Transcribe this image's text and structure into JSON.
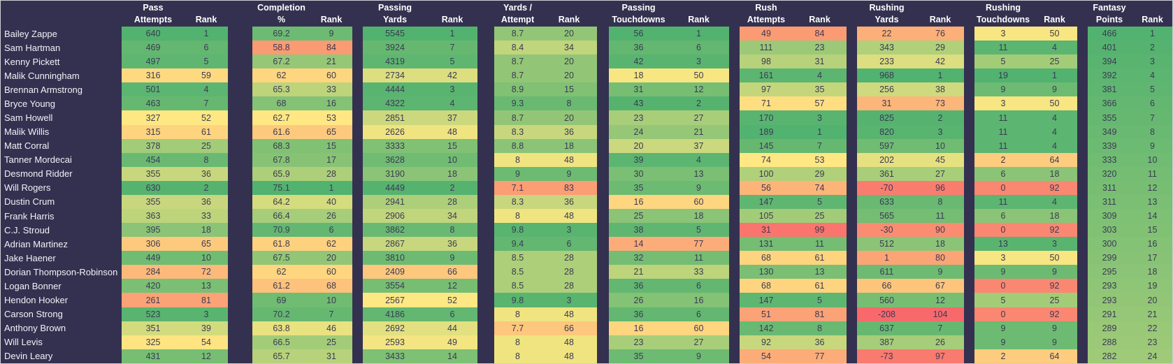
{
  "table": {
    "rank_label": "Rank",
    "sections": [
      {
        "key": "pass-attempts",
        "title_line1": "Pass",
        "title_line2": "Attempts"
      },
      {
        "key": "completion-pct",
        "title_line1": "Completion",
        "title_line2": "%"
      },
      {
        "key": "passing-yards",
        "title_line1": "Passing",
        "title_line2": "Yards"
      },
      {
        "key": "yards-per-attempt",
        "title_line1": "Yards /",
        "title_line2": "Attempt"
      },
      {
        "key": "passing-touchdowns",
        "title_line1": "Passing",
        "title_line2": "Touchdowns"
      },
      {
        "key": "rush-attempts",
        "title_line1": "Rush",
        "title_line2": "Attempts"
      },
      {
        "key": "rushing-yards",
        "title_line1": "Rushing",
        "title_line2": "Yards"
      },
      {
        "key": "rushing-touchdowns",
        "title_line1": "Rushing",
        "title_line2": "Touchdowns"
      },
      {
        "key": "fantasy-points",
        "title_line1": "Fantasy",
        "title_line2": "Points"
      }
    ],
    "rows": [
      {
        "name": "Bailey Zappe",
        "stats": [
          [
            640,
            1
          ],
          [
            69.2,
            9
          ],
          [
            5545,
            1
          ],
          [
            8.7,
            20
          ],
          [
            56,
            1
          ],
          [
            49,
            84
          ],
          [
            22,
            76
          ],
          [
            3,
            50
          ],
          [
            466,
            1
          ]
        ]
      },
      {
        "name": "Sam Hartman",
        "stats": [
          [
            469,
            6
          ],
          [
            58.8,
            84
          ],
          [
            3924,
            7
          ],
          [
            8.4,
            34
          ],
          [
            36,
            6
          ],
          [
            111,
            23
          ],
          [
            343,
            29
          ],
          [
            11,
            4
          ],
          [
            401,
            2
          ]
        ]
      },
      {
        "name": "Kenny Pickett",
        "stats": [
          [
            497,
            5
          ],
          [
            67.2,
            21
          ],
          [
            4319,
            5
          ],
          [
            8.7,
            20
          ],
          [
            42,
            3
          ],
          [
            98,
            31
          ],
          [
            233,
            42
          ],
          [
            5,
            25
          ],
          [
            394,
            3
          ]
        ]
      },
      {
        "name": "Malik Cunningham",
        "stats": [
          [
            316,
            59
          ],
          [
            62,
            60
          ],
          [
            2734,
            42
          ],
          [
            8.7,
            20
          ],
          [
            18,
            50
          ],
          [
            161,
            4
          ],
          [
            968,
            1
          ],
          [
            19,
            1
          ],
          [
            392,
            4
          ]
        ]
      },
      {
        "name": "Brennan Armstrong",
        "stats": [
          [
            501,
            4
          ],
          [
            65.3,
            33
          ],
          [
            4444,
            3
          ],
          [
            8.9,
            15
          ],
          [
            31,
            12
          ],
          [
            97,
            35
          ],
          [
            256,
            38
          ],
          [
            9,
            9
          ],
          [
            381,
            5
          ]
        ]
      },
      {
        "name": "Bryce Young",
        "stats": [
          [
            463,
            7
          ],
          [
            68,
            16
          ],
          [
            4322,
            4
          ],
          [
            9.3,
            8
          ],
          [
            43,
            2
          ],
          [
            71,
            57
          ],
          [
            31,
            73
          ],
          [
            3,
            50
          ],
          [
            366,
            6
          ]
        ]
      },
      {
        "name": "Sam Howell",
        "stats": [
          [
            327,
            52
          ],
          [
            62.7,
            53
          ],
          [
            2851,
            37
          ],
          [
            8.7,
            20
          ],
          [
            23,
            27
          ],
          [
            170,
            3
          ],
          [
            825,
            2
          ],
          [
            11,
            4
          ],
          [
            355,
            7
          ]
        ]
      },
      {
        "name": "Malik Willis",
        "stats": [
          [
            315,
            61
          ],
          [
            61.6,
            65
          ],
          [
            2626,
            48
          ],
          [
            8.3,
            36
          ],
          [
            24,
            21
          ],
          [
            189,
            1
          ],
          [
            820,
            3
          ],
          [
            11,
            4
          ],
          [
            349,
            8
          ]
        ]
      },
      {
        "name": "Matt Corral",
        "stats": [
          [
            378,
            25
          ],
          [
            68.3,
            15
          ],
          [
            3333,
            15
          ],
          [
            8.8,
            18
          ],
          [
            20,
            37
          ],
          [
            145,
            7
          ],
          [
            597,
            10
          ],
          [
            11,
            4
          ],
          [
            339,
            9
          ]
        ]
      },
      {
        "name": "Tanner Mordecai",
        "stats": [
          [
            454,
            8
          ],
          [
            67.8,
            17
          ],
          [
            3628,
            10
          ],
          [
            8,
            48
          ],
          [
            39,
            4
          ],
          [
            74,
            53
          ],
          [
            202,
            45
          ],
          [
            2,
            64
          ],
          [
            333,
            10
          ]
        ]
      },
      {
        "name": "Desmond Ridder",
        "stats": [
          [
            355,
            36
          ],
          [
            65.9,
            28
          ],
          [
            3190,
            18
          ],
          [
            9,
            9
          ],
          [
            30,
            13
          ],
          [
            100,
            29
          ],
          [
            361,
            27
          ],
          [
            6,
            18
          ],
          [
            320,
            11
          ]
        ]
      },
      {
        "name": "Will Rogers",
        "stats": [
          [
            630,
            2
          ],
          [
            75.1,
            1
          ],
          [
            4449,
            2
          ],
          [
            7.1,
            83
          ],
          [
            35,
            9
          ],
          [
            56,
            74
          ],
          [
            -70,
            96
          ],
          [
            0,
            92
          ],
          [
            311,
            12
          ]
        ]
      },
      {
        "name": "Dustin Crum",
        "stats": [
          [
            355,
            36
          ],
          [
            64.2,
            40
          ],
          [
            2941,
            28
          ],
          [
            8.3,
            36
          ],
          [
            16,
            60
          ],
          [
            147,
            5
          ],
          [
            633,
            8
          ],
          [
            11,
            4
          ],
          [
            311,
            13
          ]
        ]
      },
      {
        "name": "Frank Harris",
        "stats": [
          [
            363,
            33
          ],
          [
            66.4,
            26
          ],
          [
            2906,
            34
          ],
          [
            8,
            48
          ],
          [
            25,
            18
          ],
          [
            105,
            25
          ],
          [
            565,
            11
          ],
          [
            6,
            18
          ],
          [
            309,
            14
          ]
        ]
      },
      {
        "name": "C.J. Stroud",
        "stats": [
          [
            395,
            18
          ],
          [
            70.9,
            6
          ],
          [
            3862,
            8
          ],
          [
            9.8,
            3
          ],
          [
            38,
            5
          ],
          [
            31,
            99
          ],
          [
            -30,
            90
          ],
          [
            0,
            92
          ],
          [
            303,
            15
          ]
        ]
      },
      {
        "name": "Adrian Martinez",
        "stats": [
          [
            306,
            65
          ],
          [
            61.8,
            62
          ],
          [
            2867,
            36
          ],
          [
            9.4,
            6
          ],
          [
            14,
            77
          ],
          [
            131,
            11
          ],
          [
            512,
            18
          ],
          [
            13,
            3
          ],
          [
            300,
            16
          ]
        ]
      },
      {
        "name": "Jake Haener",
        "stats": [
          [
            449,
            10
          ],
          [
            67.5,
            20
          ],
          [
            3810,
            9
          ],
          [
            8.5,
            28
          ],
          [
            32,
            11
          ],
          [
            68,
            61
          ],
          [
            1,
            80
          ],
          [
            3,
            50
          ],
          [
            299,
            17
          ]
        ]
      },
      {
        "name": "Dorian Thompson-Robinson",
        "stats": [
          [
            284,
            72
          ],
          [
            62,
            60
          ],
          [
            2409,
            66
          ],
          [
            8.5,
            28
          ],
          [
            21,
            33
          ],
          [
            130,
            13
          ],
          [
            611,
            9
          ],
          [
            9,
            9
          ],
          [
            295,
            18
          ]
        ]
      },
      {
        "name": "Logan Bonner",
        "stats": [
          [
            420,
            13
          ],
          [
            61.2,
            68
          ],
          [
            3554,
            12
          ],
          [
            8.5,
            28
          ],
          [
            36,
            6
          ],
          [
            68,
            61
          ],
          [
            66,
            67
          ],
          [
            0,
            92
          ],
          [
            293,
            19
          ]
        ]
      },
      {
        "name": "Hendon Hooker",
        "stats": [
          [
            261,
            81
          ],
          [
            69,
            10
          ],
          [
            2567,
            52
          ],
          [
            9.8,
            3
          ],
          [
            26,
            16
          ],
          [
            147,
            5
          ],
          [
            560,
            12
          ],
          [
            5,
            25
          ],
          [
            293,
            20
          ]
        ]
      },
      {
        "name": "Carson Strong",
        "stats": [
          [
            523,
            3
          ],
          [
            70.2,
            7
          ],
          [
            4186,
            6
          ],
          [
            8,
            48
          ],
          [
            36,
            6
          ],
          [
            51,
            81
          ],
          [
            -208,
            104
          ],
          [
            0,
            92
          ],
          [
            291,
            21
          ]
        ]
      },
      {
        "name": "Anthony Brown",
        "stats": [
          [
            351,
            39
          ],
          [
            63.8,
            46
          ],
          [
            2692,
            44
          ],
          [
            7.7,
            66
          ],
          [
            16,
            60
          ],
          [
            142,
            8
          ],
          [
            637,
            7
          ],
          [
            9,
            9
          ],
          [
            289,
            22
          ]
        ]
      },
      {
        "name": "Will Levis",
        "stats": [
          [
            325,
            54
          ],
          [
            66.5,
            25
          ],
          [
            2593,
            49
          ],
          [
            8,
            48
          ],
          [
            23,
            27
          ],
          [
            92,
            36
          ],
          [
            387,
            26
          ],
          [
            9,
            9
          ],
          [
            288,
            23
          ]
        ]
      },
      {
        "name": "Devin Leary",
        "stats": [
          [
            431,
            12
          ],
          [
            65.7,
            31
          ],
          [
            3433,
            14
          ],
          [
            8,
            48
          ],
          [
            35,
            9
          ],
          [
            54,
            77
          ],
          [
            -73,
            97
          ],
          [
            2,
            64
          ],
          [
            282,
            24
          ]
        ]
      }
    ]
  },
  "colors": {
    "background": "#343150",
    "heat_best": "#52B26F",
    "heat_mid": "#FFE983",
    "heat_worst": "#F8696B",
    "cell_text": "#3B3A55",
    "header_text": "#FFFFFF",
    "max_rank": 104
  }
}
